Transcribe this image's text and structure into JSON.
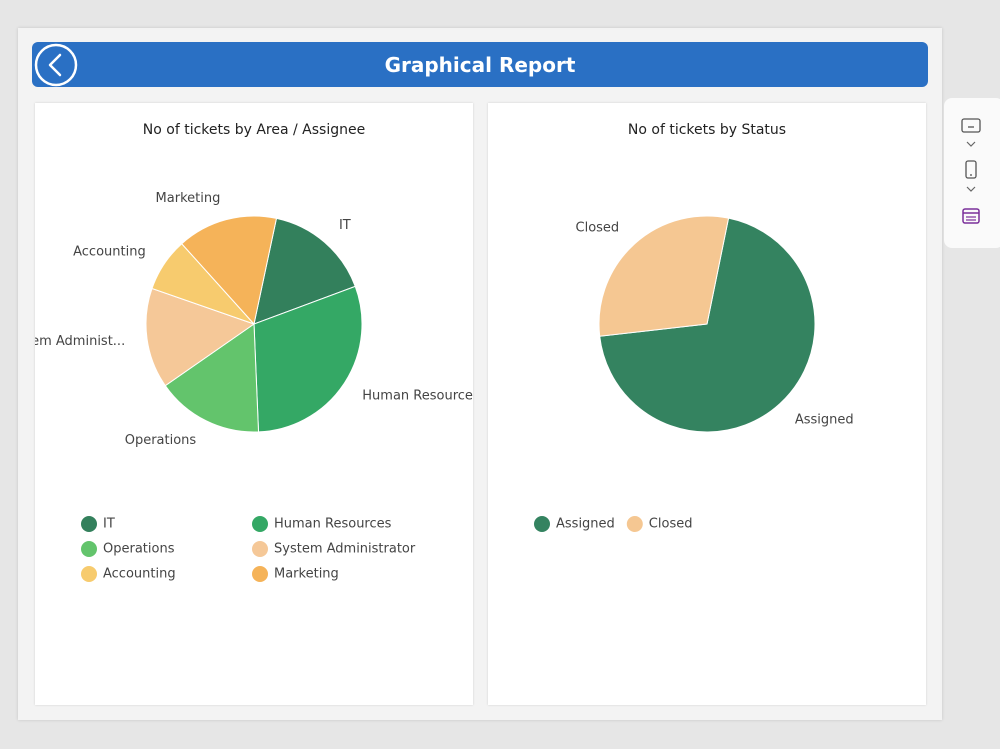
{
  "header": {
    "title": "Graphical Report"
  },
  "chart_data": [
    {
      "type": "pie",
      "title": "No of tickets by Area / Assignee",
      "categories": [
        "IT",
        "Human Resources",
        "Operations",
        "System Administrator",
        "Accounting",
        "Marketing"
      ],
      "labels": [
        "IT",
        "Human Resources",
        "Operations",
        "System Administ...",
        "Accounting",
        "Marketing"
      ],
      "values": [
        16,
        30,
        16,
        15,
        8,
        15
      ],
      "colors": [
        "#33805c",
        "#34a865",
        "#63c46c",
        "#f5c898",
        "#f7cb6e",
        "#f5b359"
      ],
      "legend": "bottom"
    },
    {
      "type": "pie",
      "title": "No of tickets by Status",
      "categories": [
        "Assigned",
        "Closed"
      ],
      "values": [
        70,
        30
      ],
      "colors": [
        "#348360",
        "#f5c792"
      ],
      "legend": "bottom"
    }
  ]
}
